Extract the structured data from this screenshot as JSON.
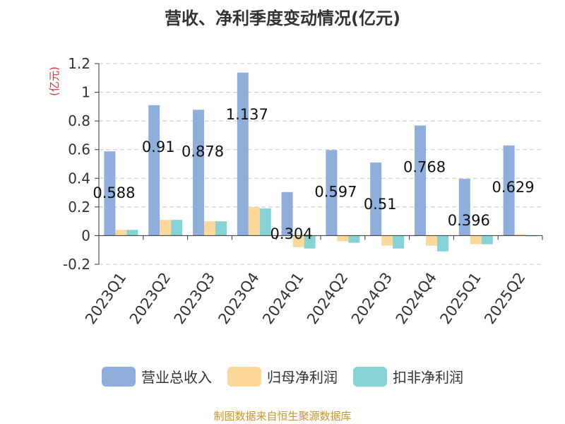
{
  "chart_data": {
    "type": "bar",
    "title": "营收、净利季度变动情况(亿元)",
    "ylabel": "(亿元)",
    "ylim": [
      -0.2,
      1.2
    ],
    "yticks": [
      -0.2,
      0,
      0.2,
      0.4,
      0.6,
      0.8,
      1,
      1.2
    ],
    "ytick_labels": [
      "-0.2",
      "0",
      "0.2",
      "0.4",
      "0.6",
      "0.8",
      "1",
      "1.2"
    ],
    "grid": true,
    "legend_position": "bottom",
    "categories": [
      "2023Q1",
      "2023Q2",
      "2023Q3",
      "2023Q4",
      "2024Q1",
      "2024Q2",
      "2024Q3",
      "2024Q4",
      "2025Q1",
      "2025Q2"
    ],
    "series": [
      {
        "name": "营业总收入",
        "color": "#8eaedb",
        "values": [
          0.588,
          0.91,
          0.878,
          1.137,
          0.304,
          0.597,
          0.51,
          0.768,
          0.396,
          0.629
        ],
        "labels": [
          "0.588",
          "0.91",
          "0.878",
          "1.137",
          "0.304",
          "0.597",
          "0.51",
          "0.768",
          "0.396",
          "0.629"
        ]
      },
      {
        "name": "归母净利润",
        "color": "#fdd89b",
        "values": [
          0.04,
          0.11,
          0.1,
          0.2,
          -0.08,
          -0.04,
          -0.07,
          -0.07,
          -0.06,
          0.01
        ]
      },
      {
        "name": "扣非净利润",
        "color": "#86d3d6",
        "values": [
          0.04,
          0.11,
          0.1,
          0.19,
          -0.09,
          -0.05,
          -0.09,
          -0.11,
          -0.06,
          -0.005
        ]
      }
    ]
  },
  "source": "制图数据来自恒生聚源数据库"
}
